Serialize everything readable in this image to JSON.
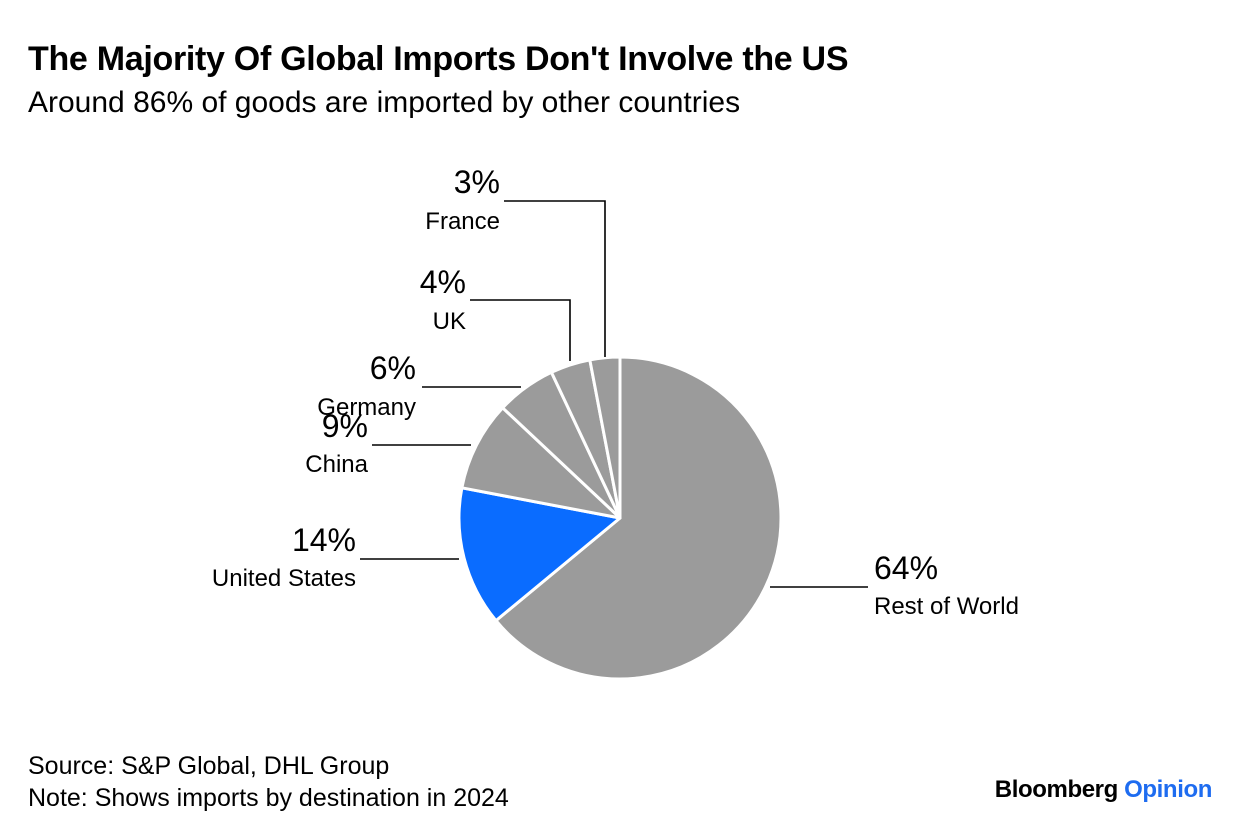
{
  "header": {
    "title": "The Majority Of Global Imports Don't Involve the US",
    "subtitle": "Around 86% of goods are imported by other countries"
  },
  "footer": {
    "source": "Source: S&P Global, DHL Group",
    "note": "Note: Shows imports by destination in 2024",
    "brand_primary": "Bloomberg",
    "brand_secondary": "Opinion"
  },
  "colors": {
    "slice_default": "#9b9b9b",
    "slice_highlight": "#0a6cff",
    "slice_border": "#ffffff",
    "leader_line": "#000000",
    "brand_accent": "#1e6cf0"
  },
  "chart_data": {
    "type": "pie",
    "title": "The Majority Of Global Imports Don't Involve the US",
    "subtitle": "Around 86% of goods are imported by other countries",
    "slices": [
      {
        "label": "Rest of World",
        "value": 64,
        "value_label": "64%",
        "highlight": false
      },
      {
        "label": "United States",
        "value": 14,
        "value_label": "14%",
        "highlight": true
      },
      {
        "label": "China",
        "value": 9,
        "value_label": "9%",
        "highlight": false
      },
      {
        "label": "Germany",
        "value": 6,
        "value_label": "6%",
        "highlight": false
      },
      {
        "label": "UK",
        "value": 4,
        "value_label": "4%",
        "highlight": false
      },
      {
        "label": "France",
        "value": 3,
        "value_label": "3%",
        "highlight": false
      }
    ],
    "start": "12 o'clock",
    "direction": "clockwise"
  }
}
